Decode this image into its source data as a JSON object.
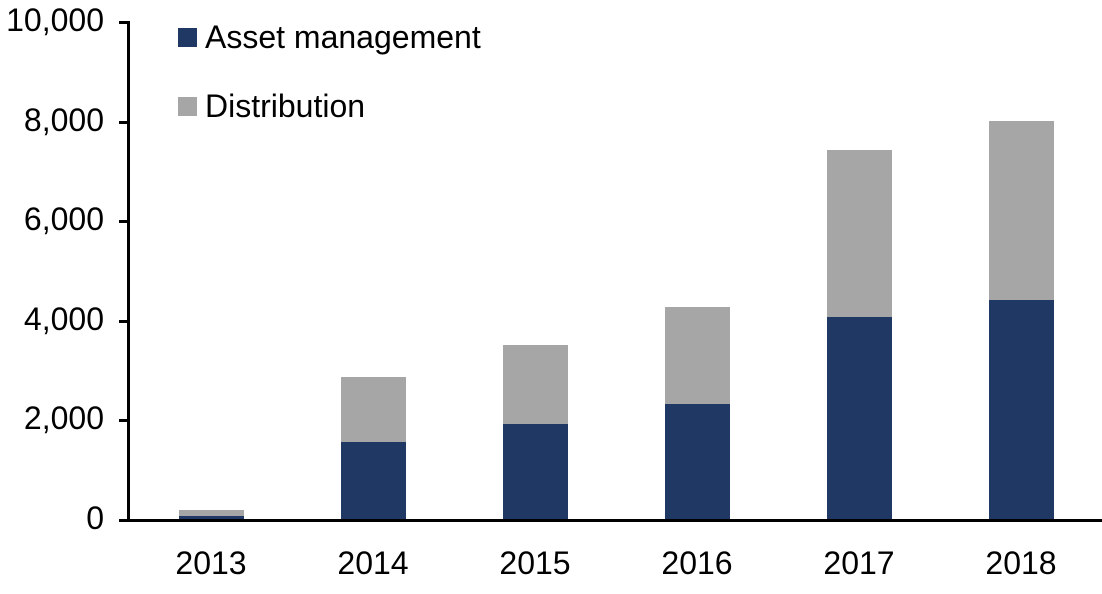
{
  "figure": {
    "background": "#FFFFFF",
    "axis_color": "#000000",
    "text_color": "#000000"
  },
  "chart_data": {
    "type": "bar",
    "stacked": true,
    "title": "",
    "xlabel": "",
    "ylabel": "",
    "grid": false,
    "legend_position": "top-left",
    "categories": [
      "2013",
      "2014",
      "2015",
      "2016",
      "2017",
      "2018"
    ],
    "series": [
      {
        "name": "Asset management",
        "color": "#1F3864",
        "values": [
          70,
          1550,
          1900,
          2300,
          4050,
          4400
        ]
      },
      {
        "name": "Distribution",
        "color": "#A6A6A6",
        "values": [
          120,
          1310,
          1600,
          1950,
          3350,
          3600
        ]
      }
    ],
    "totals": [
      190,
      2860,
      3500,
      4250,
      7400,
      8000
    ],
    "ylim": [
      0,
      10000
    ],
    "yticks": [
      {
        "value": 0,
        "label": "0"
      },
      {
        "value": 2000,
        "label": "2,000"
      },
      {
        "value": 4000,
        "label": "4,000"
      },
      {
        "value": 6000,
        "label": "6,000"
      },
      {
        "value": 8000,
        "label": "8,000"
      },
      {
        "value": 10000,
        "label": "10,000"
      }
    ]
  }
}
